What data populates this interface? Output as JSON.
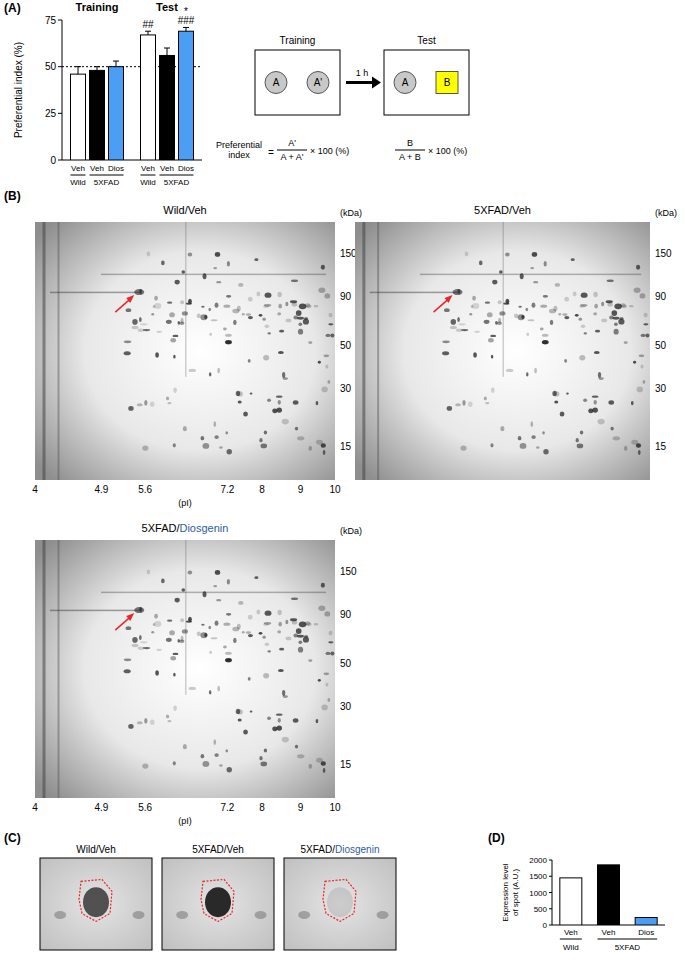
{
  "panel_labels": [
    "(A)",
    "(B)",
    "(C)",
    "(D)"
  ],
  "chart_data": [
    {
      "type": "bar",
      "categories": [
        "Training",
        "Test"
      ],
      "y_label": "Preferential index (%)",
      "ylim": [
        0,
        75
      ],
      "yticks": [
        0,
        25,
        50,
        75
      ],
      "reference_line": 50,
      "series": [
        {
          "name": "Veh",
          "group": "Wild",
          "color": "#ffffff",
          "values": [
            46,
            67
          ],
          "errors": [
            4,
            2
          ]
        },
        {
          "name": "Veh",
          "group": "5XFAD",
          "color": "#000000",
          "values": [
            48,
            56
          ],
          "errors": [
            2,
            4
          ]
        },
        {
          "name": "Dios",
          "group": "5XFAD",
          "color": "#4a9ff5",
          "values": [
            50,
            69
          ],
          "errors": [
            3,
            2
          ]
        }
      ],
      "annotations": [
        {
          "text": "##",
          "series": 0,
          "category": 1
        },
        {
          "text": "###",
          "series": 2,
          "category": 1
        },
        {
          "text": "*",
          "series": 2,
          "category": 1
        }
      ]
    },
    {
      "type": "bar",
      "categories": [
        "Veh",
        "Veh",
        "Dios"
      ],
      "category_groups": [
        "Wild",
        "5XFAD",
        "5XFAD"
      ],
      "values": [
        1450,
        1850,
        230
      ],
      "colors": [
        "#ffffff",
        "#000000",
        "#4a9ff5"
      ],
      "y_label": [
        "Expression level",
        "of spot (A.U.)"
      ],
      "ylim": [
        0,
        2000
      ],
      "yticks": [
        0,
        500,
        1000,
        1500,
        2000
      ]
    }
  ],
  "schematic": {
    "training_title": "Training",
    "test_title": "Test",
    "training_objects": [
      "A",
      "A'"
    ],
    "test_objects": [
      "A",
      "B"
    ],
    "interval": "1 h",
    "index_label": [
      "Preferential",
      "index"
    ],
    "equals": "=",
    "formula_training": {
      "numerator": "A'",
      "denominator": "A + A'",
      "suffix": "× 100 (%)"
    },
    "formula_test": {
      "numerator": "B",
      "denominator": "A + B",
      "suffix": "× 100 (%)"
    }
  },
  "gels": {
    "x_label": "(pI)",
    "y_label": "(kDa)",
    "xlim": [
      4,
      10
    ],
    "ylim": [
      10,
      220
    ],
    "xticks": [
      4,
      4.9,
      5.6,
      7.2,
      8,
      9,
      10
    ],
    "yticks": [
      150,
      90,
      50,
      30,
      15
    ],
    "log": true,
    "marked_spot": {
      "pI": 5.5,
      "kDa": 95
    },
    "panels": [
      {
        "title": [
          {
            "text": "Wild/Veh",
            "color": "#000000"
          }
        ]
      },
      {
        "title": [
          {
            "text": "5XFAD/Veh",
            "color": "#000000"
          }
        ],
        "tick_labels": "y"
      },
      {
        "title": [
          {
            "text": "5XFAD/",
            "color": "#000000"
          },
          {
            "text": "Diosgenin",
            "color": "#2e5c9e"
          }
        ]
      }
    ]
  },
  "crops": {
    "panels": [
      {
        "title": [
          {
            "text": "Wild/Veh",
            "color": "#000000"
          }
        ]
      },
      {
        "title": [
          {
            "text": "5XFAD/Veh",
            "color": "#000000"
          }
        ]
      },
      {
        "title": [
          {
            "text": "5XFAD/",
            "color": "#000000"
          },
          {
            "text": "Diosgenin",
            "color": "#2e5c9e"
          }
        ]
      }
    ]
  }
}
